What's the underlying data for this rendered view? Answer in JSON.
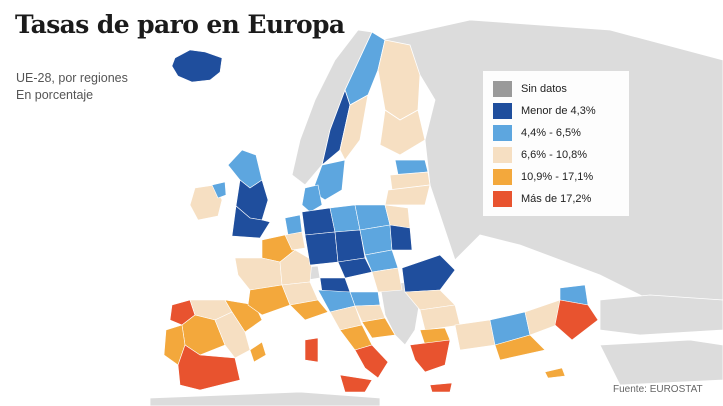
{
  "title": "Tasas de paro en Europa",
  "subtitle": [
    "UE-28, por regiones",
    "En porcentaje"
  ],
  "legend": [
    {
      "label": "Sin datos",
      "color": "#9a9a9a"
    },
    {
      "label": "Menor de 4,3%",
      "color": "#1f4e9d"
    },
    {
      "label": "4,4% - 6,5%",
      "color": "#5da6df"
    },
    {
      "label": "6,6% - 10,8%",
      "color": "#f6dfc2"
    },
    {
      "label": "10,9% - 17,1%",
      "color": "#f3a83c"
    },
    {
      "label": "Más de 17,2%",
      "color": "#e8532f"
    }
  ],
  "source": "Fuente: EUROSTAT",
  "colors": {
    "non_eu": "#dcdcdc",
    "sea": "#ffffff",
    "border": "#ffffff"
  }
}
